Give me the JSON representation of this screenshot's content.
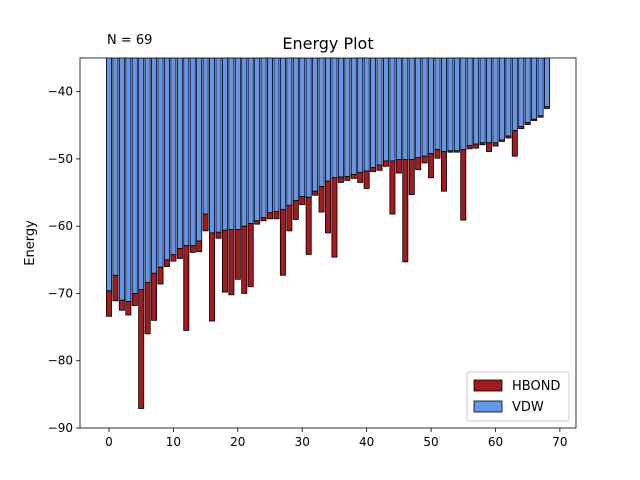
{
  "chart_data": {
    "type": "bar",
    "title": "Energy Plot",
    "annotation": "N = 69",
    "xlabel": "",
    "ylabel": "Energy",
    "xlim": [
      -4.5,
      72.5
    ],
    "ylim": [
      -90,
      -35
    ],
    "x_ticks": [
      0,
      10,
      20,
      30,
      40,
      50,
      60,
      70
    ],
    "y_ticks": [
      -90,
      -80,
      -70,
      -60,
      -50,
      -40
    ],
    "legend_position": "lower-right",
    "x": [
      0,
      1,
      2,
      3,
      4,
      5,
      6,
      7,
      8,
      9,
      10,
      11,
      12,
      13,
      14,
      15,
      16,
      17,
      18,
      19,
      20,
      21,
      22,
      23,
      24,
      25,
      26,
      27,
      28,
      29,
      30,
      31,
      32,
      33,
      34,
      35,
      36,
      37,
      38,
      39,
      40,
      41,
      42,
      43,
      44,
      45,
      46,
      47,
      48,
      49,
      50,
      51,
      52,
      53,
      54,
      55,
      56,
      57,
      58,
      59,
      60,
      61,
      62,
      63,
      64,
      65,
      66,
      67,
      68
    ],
    "series": [
      {
        "name": "VDW",
        "color": "#6495ed",
        "values": [
          -69.6,
          -67.3,
          -71.0,
          -71.2,
          -70.0,
          -69.4,
          -68.4,
          -67.0,
          -66.1,
          -65.0,
          -64.2,
          -63.3,
          -62.9,
          -62.9,
          -62.2,
          -58.2,
          -61.0,
          -60.9,
          -60.6,
          -60.5,
          -60.5,
          -60.0,
          -59.6,
          -59.2,
          -58.7,
          -58.0,
          -57.8,
          -57.5,
          -56.9,
          -56.2,
          -55.6,
          -55.7,
          -54.8,
          -54.1,
          -53.3,
          -52.8,
          -52.7,
          -52.6,
          -52.3,
          -52.0,
          -51.8,
          -51.3,
          -50.9,
          -50.3,
          -50.3,
          -50.1,
          -50.1,
          -50.1,
          -49.8,
          -49.6,
          -49.2,
          -48.6,
          -48.9,
          -48.8,
          -48.8,
          -48.6,
          -48.0,
          -47.8,
          -47.6,
          -47.6,
          -47.6,
          -47.2,
          -46.6,
          -45.8,
          -45.2,
          -44.6,
          -44.1,
          -43.6,
          -42.2
        ]
      },
      {
        "name": "HBOND",
        "color": "#a31a1f",
        "values": [
          -3.8,
          -3.8,
          -1.5,
          -2.0,
          -1.8,
          -17.7,
          -7.6,
          -7.0,
          -2.5,
          -1.0,
          -1.0,
          -1.5,
          -12.6,
          -1.0,
          -1.6,
          -2.5,
          -13.1,
          -0.9,
          -9.2,
          -9.7,
          -7.4,
          -10.0,
          -9.4,
          -0.5,
          -0.5,
          -0.9,
          -1.1,
          -9.8,
          -3.8,
          -2.8,
          -1.2,
          -8.5,
          -0.6,
          -3.8,
          -7.7,
          -11.8,
          -0.8,
          -0.6,
          -0.6,
          -1.5,
          -2.6,
          -0.6,
          -0.8,
          -0.8,
          -7.9,
          -2.0,
          -15.2,
          -5.2,
          -1.8,
          -1.0,
          -3.6,
          -1.3,
          -5.9,
          -0.2,
          -0.2,
          -10.5,
          -0.5,
          -0.6,
          -0.3,
          -1.3,
          -0.5,
          -0.2,
          -0.3,
          -3.8,
          -0.3,
          -0.3,
          -0.2,
          -0.2,
          -0.3
        ]
      }
    ],
    "stacking_note_hidden": ""
  }
}
